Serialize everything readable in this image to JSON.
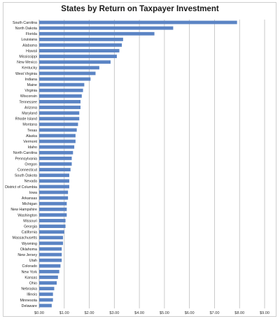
{
  "chart_data": {
    "type": "bar",
    "orientation": "horizontal",
    "title": "States by Return on Taxpayer Investment",
    "xlabel": "",
    "ylabel": "",
    "xlim": [
      0,
      9
    ],
    "x_ticks": [
      "$0.00",
      "$1.00",
      "$2.00",
      "$3.00",
      "$4.00",
      "$5.00",
      "$6.00",
      "$7.00",
      "$8.00",
      "$9.00"
    ],
    "grid": "vertical",
    "bar_color": "#5b84c4",
    "categories": [
      "South Carolina",
      "North Dakota",
      "Florida",
      "Louisiana",
      "Alabama",
      "Hawaii",
      "Mississippi",
      "New Mexico",
      "Kentucky",
      "West Virginia",
      "Indiana",
      "Maine",
      "Virginia",
      "Wisconsin",
      "Tennessee",
      "Arizona",
      "Maryland",
      "Rhode Island",
      "Montana",
      "Texas",
      "Alaska",
      "Vermont",
      "Idaho",
      "North Carolina",
      "Pennsylvania",
      "Oregon",
      "Connecticut",
      "South Dakota",
      "Nevada",
      "District of Columbia",
      "Iowa",
      "Arkansas",
      "Michigan",
      "New Hampshire",
      "Washington",
      "Missouri",
      "Georgia",
      "California",
      "Massachusetts",
      "Wyoming",
      "Oklahoma",
      "New Jersey",
      "Utah",
      "Colorado",
      "New York",
      "Kansas",
      "Ohio",
      "Nebraska",
      "Illinois",
      "Minnesota",
      "Delaware"
    ],
    "values": [
      7.9,
      5.35,
      4.6,
      3.35,
      3.3,
      3.2,
      3.1,
      2.85,
      2.4,
      2.25,
      2.05,
      1.8,
      1.75,
      1.7,
      1.65,
      1.65,
      1.6,
      1.6,
      1.55,
      1.5,
      1.45,
      1.45,
      1.4,
      1.35,
      1.3,
      1.3,
      1.25,
      1.2,
      1.2,
      1.2,
      1.15,
      1.15,
      1.1,
      1.1,
      1.1,
      1.05,
      1.05,
      1.0,
      0.95,
      0.95,
      0.9,
      0.9,
      0.9,
      0.85,
      0.8,
      0.75,
      0.7,
      0.6,
      0.55,
      0.55,
      0.5
    ]
  }
}
